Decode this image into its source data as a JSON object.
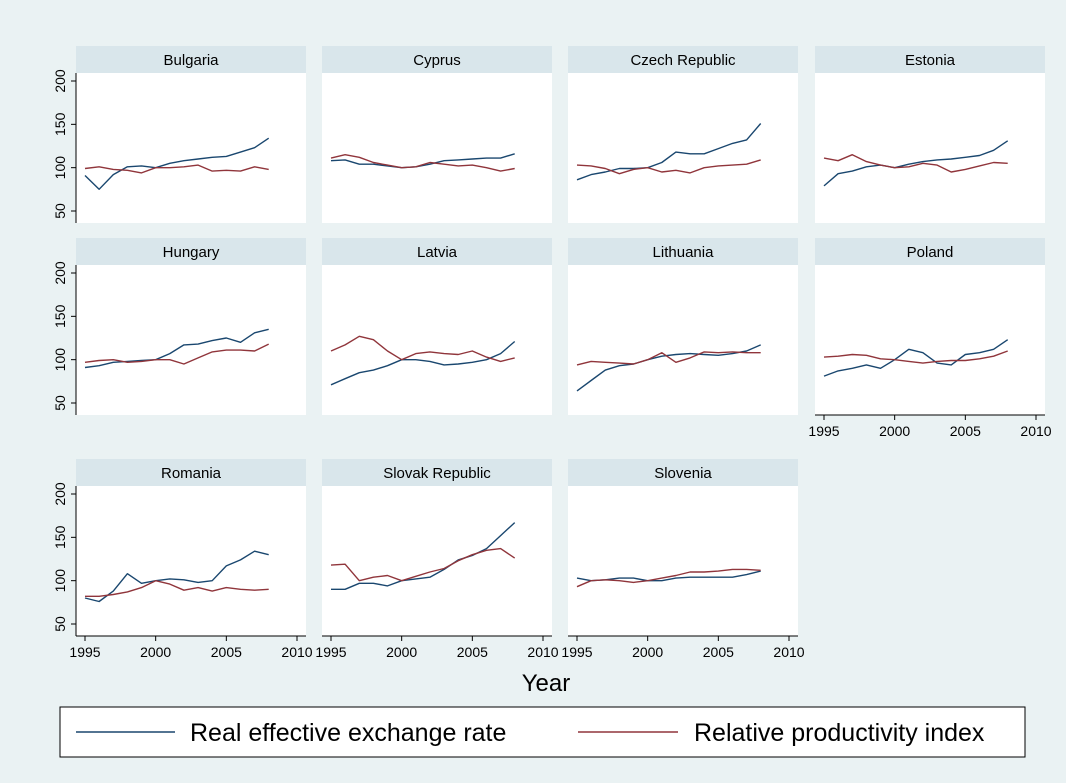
{
  "chart_data": {
    "type": "line",
    "xlabel": "Year",
    "ylabel": "",
    "xlim": [
      1995,
      2010
    ],
    "ylim": [
      50,
      200
    ],
    "xticks": [
      1995,
      2000,
      2005,
      2010
    ],
    "yticks": [
      50,
      100,
      150,
      200
    ],
    "x": [
      1995,
      1996,
      1997,
      1998,
      1999,
      2000,
      2001,
      2002,
      2003,
      2004,
      2005,
      2006,
      2007,
      2008
    ],
    "legend": {
      "position": "bottom",
      "entries": [
        {
          "name": "Real effective exchange rate",
          "color": "#1a476f"
        },
        {
          "name": "Relative productivity index",
          "color": "#90353b"
        }
      ]
    },
    "panels": [
      {
        "title": "Bulgaria",
        "reer": [
          91,
          75,
          92,
          101,
          102,
          100,
          105,
          108,
          110,
          112,
          113,
          118,
          123,
          134
        ],
        "rpi": [
          99,
          101,
          98,
          97,
          94,
          100,
          100,
          101,
          103,
          96,
          97,
          96,
          101,
          98
        ]
      },
      {
        "title": "Cyprus",
        "reer": [
          108,
          109,
          104,
          104,
          102,
          100,
          101,
          104,
          108,
          109,
          110,
          111,
          111,
          116
        ],
        "rpi": [
          111,
          115,
          112,
          106,
          103,
          100,
          101,
          106,
          104,
          102,
          103,
          100,
          96,
          99
        ]
      },
      {
        "title": "Czech Republic",
        "reer": [
          86,
          92,
          95,
          99,
          99,
          100,
          106,
          118,
          116,
          116,
          122,
          128,
          132,
          151
        ],
        "rpi": [
          103,
          102,
          99,
          93,
          98,
          100,
          95,
          97,
          94,
          100,
          102,
          103,
          104,
          109
        ]
      },
      {
        "title": "Estonia",
        "reer": [
          79,
          93,
          96,
          101,
          103,
          100,
          104,
          107,
          109,
          110,
          112,
          114,
          120,
          131
        ],
        "rpi": [
          111,
          108,
          115,
          107,
          103,
          100,
          101,
          105,
          103,
          95,
          98,
          102,
          106,
          105
        ]
      },
      {
        "title": "Hungary",
        "reer": [
          91,
          93,
          97,
          98,
          99,
          100,
          107,
          117,
          118,
          122,
          125,
          120,
          131,
          135
        ],
        "rpi": [
          97,
          99,
          100,
          97,
          98,
          100,
          100,
          95,
          102,
          109,
          111,
          111,
          110,
          118
        ]
      },
      {
        "title": "Latvia",
        "reer": [
          71,
          78,
          85,
          88,
          93,
          100,
          100,
          98,
          94,
          95,
          97,
          100,
          107,
          121
        ],
        "rpi": [
          110,
          117,
          127,
          123,
          110,
          100,
          107,
          109,
          107,
          106,
          110,
          103,
          98,
          102
        ]
      },
      {
        "title": "Lithuania",
        "reer": [
          64,
          76,
          88,
          93,
          95,
          100,
          104,
          106,
          107,
          106,
          105,
          107,
          110,
          117
        ],
        "rpi": [
          94,
          98,
          97,
          96,
          95,
          100,
          108,
          97,
          102,
          109,
          108,
          109,
          108,
          108
        ]
      },
      {
        "title": "Poland",
        "reer": [
          81,
          87,
          90,
          94,
          90,
          100,
          112,
          108,
          96,
          94,
          106,
          108,
          112,
          123
        ],
        "rpi": [
          103,
          104,
          106,
          105,
          101,
          100,
          98,
          96,
          98,
          99,
          99,
          101,
          104,
          110
        ]
      },
      {
        "title": "Romania",
        "reer": [
          80,
          76,
          88,
          108,
          97,
          100,
          102,
          101,
          98,
          100,
          117,
          124,
          134,
          130
        ],
        "rpi": [
          82,
          82,
          84,
          87,
          92,
          100,
          96,
          89,
          92,
          88,
          92,
          90,
          89,
          90
        ]
      },
      {
        "title": "Slovak Republic",
        "reer": [
          90,
          90,
          97,
          97,
          94,
          100,
          102,
          104,
          113,
          124,
          129,
          137,
          152,
          167
        ],
        "rpi": [
          118,
          119,
          100,
          104,
          106,
          100,
          105,
          110,
          114,
          123,
          130,
          135,
          137,
          126
        ]
      },
      {
        "title": "Slovenia",
        "reer": [
          103,
          100,
          101,
          103,
          103,
          100,
          100,
          103,
          104,
          104,
          104,
          104,
          107,
          111
        ],
        "rpi": [
          93,
          100,
          101,
          100,
          98,
          100,
          103,
          106,
          110,
          110,
          111,
          113,
          113,
          112
        ]
      }
    ]
  }
}
